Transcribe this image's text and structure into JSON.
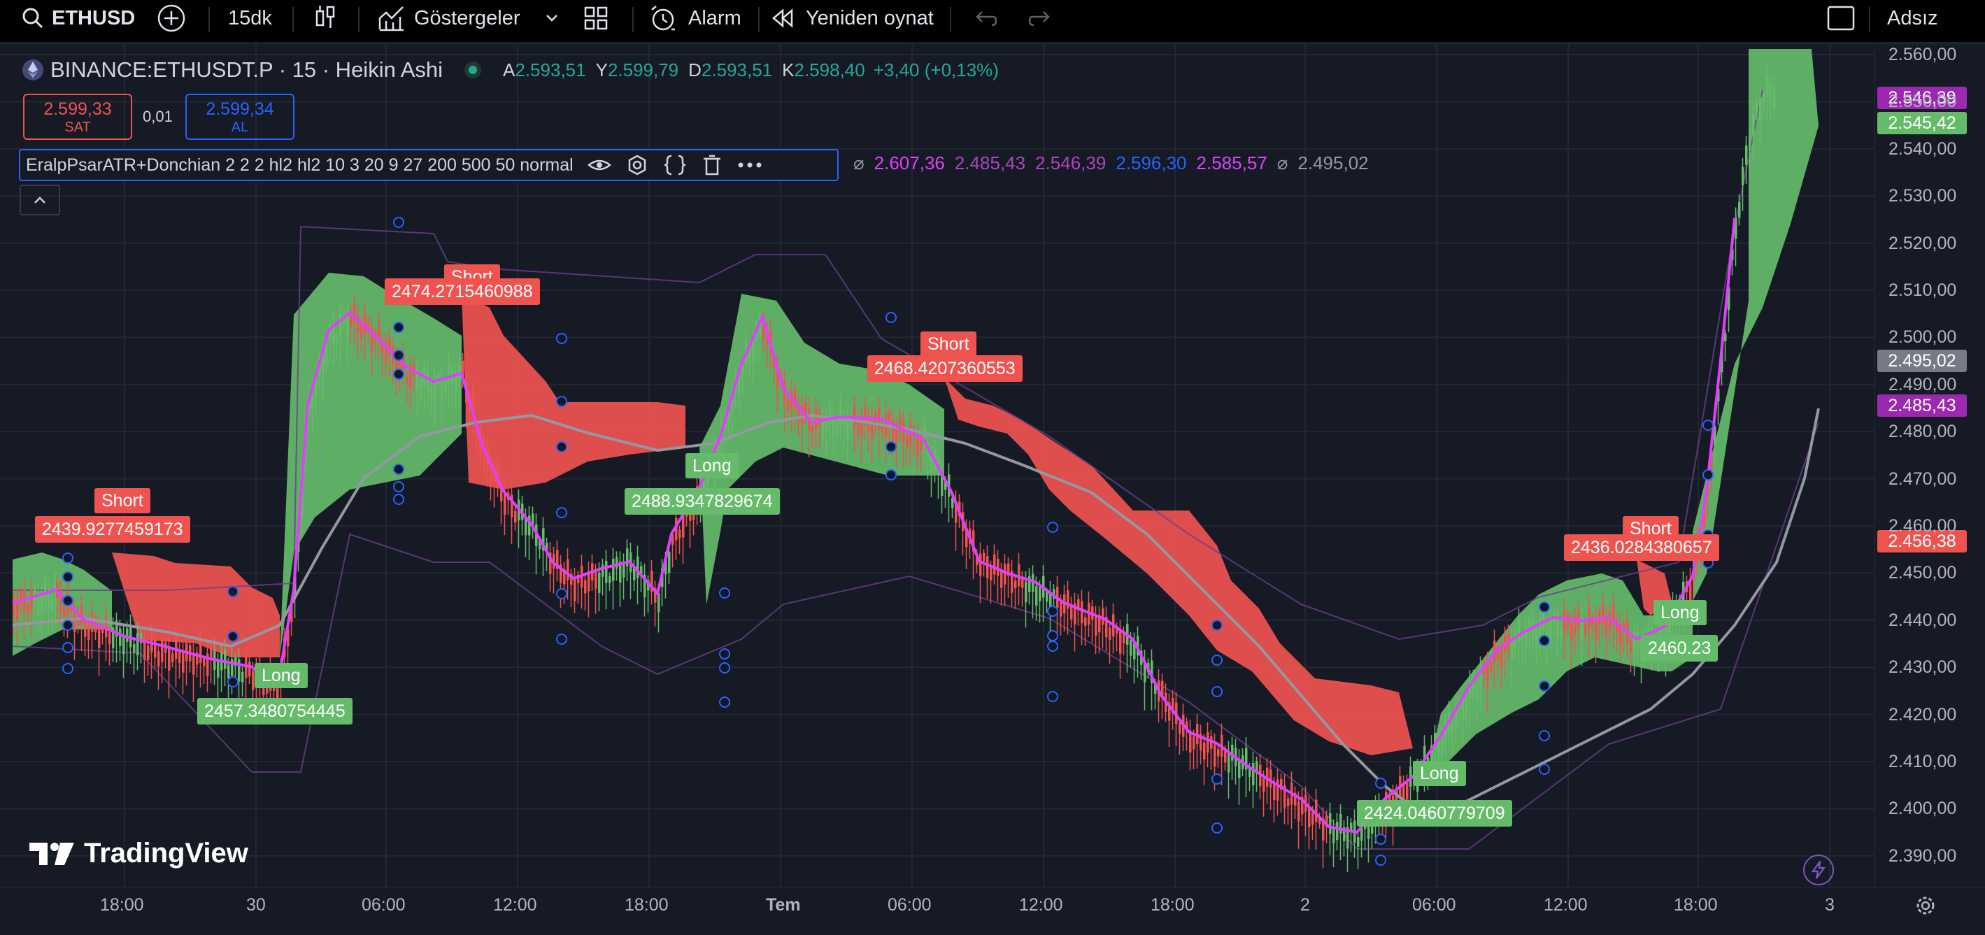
{
  "toolbar": {
    "symbol": "ETHUSD",
    "interval": "15dk",
    "indicators": "Göstergeler",
    "alert": "Alarm",
    "replay": "Yeniden oynat",
    "layout_name": "Adsız"
  },
  "legend": {
    "symbol_title": "BINANCE:ETHUSDT.P · 15 · Heikin Ashi",
    "o_label": "A",
    "o_value": "2.593,51",
    "h_label": "Y",
    "h_value": "2.599,79",
    "l_label": "D",
    "l_value": "2.593,51",
    "c_label": "K",
    "c_value": "2.598,40",
    "change": "+3,40 (+0,13%)"
  },
  "trade": {
    "sell_price": "2.599,33",
    "sell_label": "SAT",
    "spread": "0,01",
    "buy_price": "2.599,34",
    "buy_label": "AL"
  },
  "indicator": {
    "name": "EralpPsarATR+Donchian 2 2 2 hl2 hl2 10 3 20 9 27 200 500 50 normal",
    "null_symbol": "⌀",
    "values": [
      "2.607,36",
      "2.485,43",
      "2.546,39",
      "2.596,30",
      "2.585,57"
    ],
    "last_value": "2.495,02"
  },
  "price_axis": [
    "2.560,00",
    "2.550,00",
    "2.540,00",
    "2.530,00",
    "2.520,00",
    "2.510,00",
    "2.500,00",
    "2.490,00",
    "2.480,00",
    "2.470,00",
    "2.460,00",
    "2.450,00",
    "2.440,00",
    "2.430,00",
    "2.420,00",
    "2.410,00",
    "2.400,00",
    "2.390,00"
  ],
  "price_badges": {
    "b1": "2.546,39",
    "b2": "2.545,42",
    "b3": "2.495,02",
    "b4": "2.485,43",
    "b5": "2.456,38"
  },
  "time_axis": [
    "18:00",
    "30",
    "06:00",
    "12:00",
    "18:00",
    "Tem",
    "06:00",
    "12:00",
    "18:00",
    "2",
    "06:00",
    "12:00",
    "18:00",
    "3"
  ],
  "signals": {
    "short1": "Short",
    "short1_price": "2439.9277459173",
    "long1": "Long",
    "long1_price": "2457.3480754445",
    "short2": "Short",
    "short2_price": "2474.2715460988",
    "long2": "Long",
    "long2_price": "2488.9347829674",
    "short3": "Short",
    "short3_price": "2468.4207360553",
    "long3": "Long",
    "long3_price": "2424.0460779709",
    "short4": "Short",
    "short4_price": "2436.0284380657",
    "long4": "Long",
    "long4_price": "2460.23"
  },
  "watermark": "TradingView",
  "colors": {
    "bull": "#66bb6a",
    "bear": "#ef5350",
    "accent": "#2962ff",
    "purple": "#9c27b0"
  }
}
